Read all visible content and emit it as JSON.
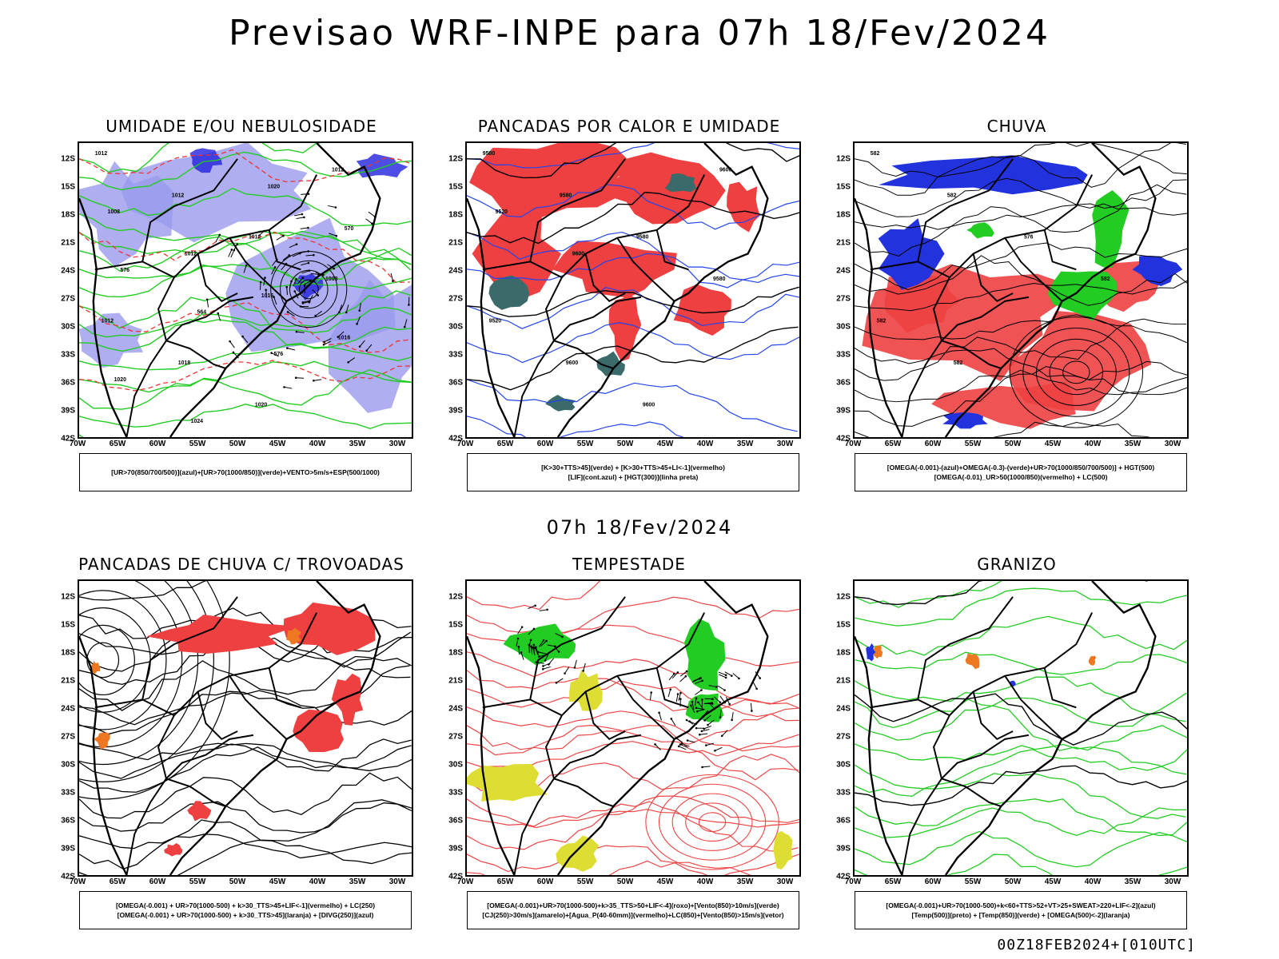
{
  "header": {
    "title": "Previsao WRF-INPE  para 07h 18/Fev/2024"
  },
  "mid_title": "07h 18/Fev/2024",
  "footer": "00Z18FEB2024+[010UTC]",
  "axes": {
    "lat_labels": [
      "12S",
      "15S",
      "18S",
      "21S",
      "24S",
      "27S",
      "30S",
      "33S",
      "36S",
      "39S",
      "42S"
    ],
    "lon_labels": [
      "70W",
      "65W",
      "60W",
      "55W",
      "50W",
      "45W",
      "40W",
      "35W",
      "30W"
    ]
  },
  "panels": [
    {
      "id": "umidade",
      "title": "UMIDADE E/OU NEBULOSIDADE",
      "legend": [
        "[UR>70(850/700/500)](azul)+[UR>70(1000/850)](verde)+VENTO>5m/s+ESP(500/1000)"
      ],
      "contour_labels": [
        "1012",
        "1012",
        "1012",
        "1008",
        "1012",
        "1018",
        "1020",
        "1012",
        "1008",
        "1012",
        "1016",
        "1016",
        "1020",
        "1024",
        "1020",
        "570",
        "576",
        "564",
        "576"
      ]
    },
    {
      "id": "pancadas-calor",
      "title": "PANCADAS POR CALOR E UMIDADE",
      "legend": [
        "[K>30+TTS>45](verde) + [K>30+TTS>45+LI<-1](vermelho)",
        "[LIF](cont.azul) + [HGT(300)](linha preta)"
      ],
      "contour_labels": [
        "9580",
        "9580",
        "9580",
        "9580",
        "9520",
        "9600",
        "9600",
        "9600",
        "9520",
        "9600"
      ]
    },
    {
      "id": "chuva",
      "title": "CHUVA",
      "legend": [
        "[OMEGA(-0.001)-(azul)+OMEGA(-0.3)-(verde)+UR>70(1000/850/700/500)] + HGT(500)",
        "[OMEGA(-0.01)_UR>50(1000/850)(vermelho) + LC(500)"
      ],
      "contour_labels": [
        "582",
        "582",
        "576",
        "582",
        "582",
        "582"
      ]
    },
    {
      "id": "trovoadas",
      "title": "PANCADAS DE CHUVA C/ TROVOADAS",
      "legend": [
        "[OMEGA(-0.001) + UR>70(1000-500) + k>30_TTS>45+LIF<-1](vermelho) + LC(250)",
        "[OMEGA(-0.001) + UR>70(1000-500) + k>30_TTS>45](laranja) + [DIVG(250)](azul)"
      ]
    },
    {
      "id": "tempestade",
      "title": "TEMPESTADE",
      "legend": [
        "[OMEGA(-0.001)+UR>70(1000-500)+k>35_TTS>50+LIF<-4](roxo)+[Vento(850)>10m/s](verde)",
        "[CJ(250)>30m/s](amarelo)+[Agua_P(40-60mm)](vermelho)+LC(850)+[Vento(850)>15m/s](vetor)"
      ]
    },
    {
      "id": "granizo",
      "title": "GRANIZO",
      "legend": [
        "[OMEGA(-0.001)+UR>70(1000-500)+k<60+TTS>52+VT>25+SWEAT>220+LIF<-2](azul)",
        "[Temp(500)](preto) + [Temp(850)](verde) + [OMEGA(500)<-2](laranja)"
      ]
    }
  ],
  "colors": {
    "blue_fill": "#9a9aee",
    "blue_dark": "#2222dd",
    "green": "#22cc22",
    "red": "#ee4040",
    "orange": "#ee7722",
    "yellow": "#dddd33",
    "teal": "#3a6a6a",
    "black": "#000000"
  }
}
